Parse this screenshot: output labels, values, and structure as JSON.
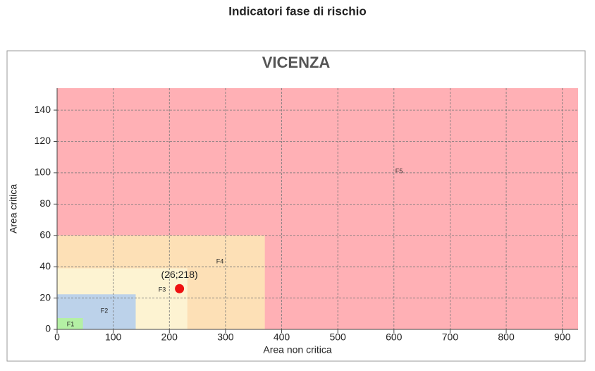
{
  "page_title": "Indicatori fase di rischio",
  "chart_data": {
    "type": "scatter",
    "title": "VICENZA",
    "x_label": "Area non critica",
    "y_label": "Area critica",
    "xlim": [
      0,
      928
    ],
    "ylim": [
      0,
      154
    ],
    "xticks": [
      0,
      100,
      200,
      300,
      400,
      500,
      600,
      700,
      800,
      900
    ],
    "yticks": [
      0,
      20,
      40,
      60,
      80,
      100,
      120,
      140
    ],
    "grid": true,
    "zones": [
      {
        "name": "F5",
        "x": 928,
        "y": 154,
        "color": "#ffb0b5"
      },
      {
        "name": "F4",
        "x": 370,
        "y": 60,
        "color": "#fde0b6"
      },
      {
        "name": "F3",
        "x": 232,
        "y": 39,
        "color": "#fdf3d2"
      },
      {
        "name": "F2",
        "x": 140,
        "y": 22.4,
        "color": "#bcd2ea"
      },
      {
        "name": "F1",
        "x": 46,
        "y": 7.2,
        "color": "#b4f0a4"
      }
    ],
    "x": [
      218
    ],
    "values": [
      26
    ],
    "value_labels": [
      "(26;218)"
    ],
    "color": "#ee1111"
  }
}
